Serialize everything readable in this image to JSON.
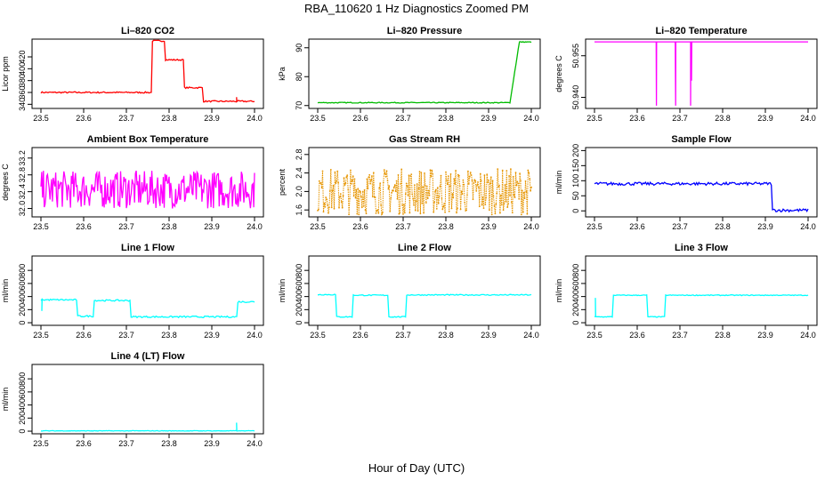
{
  "page": {
    "title": "RBA_110620  1 Hz Diagnostics Zoomed PM",
    "xlabel": "Hour of Day (UTC)"
  },
  "chart_data": [
    {
      "type": "line",
      "title": "Li–820 CO2",
      "ylabel": "Licor ppm",
      "color": "#ff0000",
      "xlim": [
        23.5,
        24.0
      ],
      "ylim": [
        333,
        450
      ],
      "yticks": [
        340,
        360,
        380,
        400,
        420
      ],
      "xticks": [
        "23.5",
        "23.6",
        "23.7",
        "23.8",
        "23.9",
        "24.0"
      ],
      "segments": [
        [
          23.5,
          23.76,
          360
        ],
        [
          23.76,
          23.79,
          447
        ],
        [
          23.79,
          23.835,
          415
        ],
        [
          23.835,
          23.88,
          368
        ],
        [
          23.88,
          24.0,
          345
        ]
      ],
      "noise": 1.2,
      "spikes": [
        [
          23.958,
          352
        ]
      ]
    },
    {
      "type": "line",
      "title": "Li–820 Pressure",
      "ylabel": "kPa",
      "color": "#00bb00",
      "xlim": [
        23.5,
        24.0
      ],
      "ylim": [
        69,
        93
      ],
      "yticks": [
        70,
        80,
        90
      ],
      "xticks": [
        "23.5",
        "23.6",
        "23.7",
        "23.8",
        "23.9",
        "24.0"
      ],
      "segments": [
        [
          23.5,
          23.95,
          71
        ],
        [
          23.95,
          23.97,
          80
        ],
        [
          23.97,
          24.0,
          92
        ]
      ],
      "noise": 0.15,
      "ramp": [
        23.95,
        23.972,
        71,
        92
      ]
    },
    {
      "type": "line",
      "title": "Li–820 Temperature",
      "ylabel": "degrees C",
      "color": "#ff00ff",
      "xlim": [
        23.5,
        24.0
      ],
      "ylim": [
        50.936,
        50.961
      ],
      "yticks": [
        50.94,
        50.955
      ],
      "ytick_labels": [
        "50.940",
        "50.955"
      ],
      "xticks": [
        "23.5",
        "23.6",
        "23.7",
        "23.8",
        "23.9",
        "24.0"
      ],
      "segments": [
        [
          23.5,
          24.0,
          50.96
        ]
      ],
      "noise": 0,
      "dips": [
        [
          23.645,
          50.937
        ],
        [
          23.69,
          50.937
        ],
        [
          23.725,
          50.937
        ],
        [
          23.727,
          50.946
        ]
      ]
    },
    {
      "type": "line",
      "title": "Ambient Box Temperature",
      "ylabel": "degrees C",
      "color": "#ff00ff",
      "xlim": [
        23.5,
        24.0
      ],
      "ylim": [
        31.8,
        33.45
      ],
      "yticks": [
        32.0,
        32.4,
        32.8,
        33.2
      ],
      "ytick_labels": [
        "32.0",
        "32.4",
        "32.8",
        "33.2"
      ],
      "xticks": [
        "23.5",
        "23.6",
        "23.7",
        "23.8",
        "23.9",
        "24.0"
      ],
      "segments": [
        [
          23.5,
          24.0,
          32.45
        ]
      ],
      "noise": 0.45,
      "dense": true
    },
    {
      "type": "scatter",
      "title": "Gas Stream RH",
      "ylabel": "percent",
      "color": "#e69500",
      "xlim": [
        23.5,
        24.0
      ],
      "ylim": [
        1.45,
        2.95
      ],
      "yticks": [
        1.6,
        2.0,
        2.4,
        2.8
      ],
      "ytick_labels": [
        "1.6",
        "2.0",
        "2.4",
        "2.8"
      ],
      "xticks": [
        "23.5",
        "23.6",
        "23.7",
        "23.8",
        "23.9",
        "24.0"
      ],
      "segments": [
        [
          23.5,
          24.0,
          2.0
        ]
      ],
      "noise": 0.5,
      "dense": true
    },
    {
      "type": "line",
      "title": "Sample Flow",
      "ylabel": "ml/min",
      "color": "#0000ff",
      "xlim": [
        23.5,
        24.0
      ],
      "ylim": [
        -20,
        210
      ],
      "yticks": [
        0,
        50,
        100,
        150,
        200
      ],
      "xticks": [
        "23.5",
        "23.6",
        "23.7",
        "23.8",
        "23.9",
        "24.0"
      ],
      "segments": [
        [
          23.5,
          23.915,
          90
        ],
        [
          23.915,
          24.0,
          2
        ]
      ],
      "noise": 5
    },
    {
      "type": "line",
      "title": "Line 1 Flow",
      "ylabel": "ml/min",
      "color": "#00ffff",
      "xlim": [
        23.5,
        24.0
      ],
      "ylim": [
        -40,
        1020
      ],
      "yticks": [
        0,
        200,
        400,
        600,
        800
      ],
      "xticks": [
        "23.5",
        "23.6",
        "23.7",
        "23.8",
        "23.9",
        "24.0"
      ],
      "segments": [
        [
          23.5,
          23.585,
          350
        ],
        [
          23.585,
          23.625,
          100
        ],
        [
          23.625,
          23.71,
          340
        ],
        [
          23.71,
          23.96,
          90
        ],
        [
          23.96,
          24.0,
          320
        ]
      ],
      "noise": 12,
      "spikes": [
        [
          23.502,
          180
        ]
      ]
    },
    {
      "type": "line",
      "title": "Line 2 Flow",
      "ylabel": "ml/min",
      "color": "#00ffff",
      "xlim": [
        23.5,
        24.0
      ],
      "ylim": [
        -40,
        1020
      ],
      "yticks": [
        0,
        200,
        400,
        600,
        800
      ],
      "xticks": [
        "23.5",
        "23.6",
        "23.7",
        "23.8",
        "23.9",
        "24.0"
      ],
      "segments": [
        [
          23.5,
          23.542,
          430
        ],
        [
          23.542,
          23.582,
          90
        ],
        [
          23.582,
          23.665,
          420
        ],
        [
          23.665,
          23.708,
          90
        ],
        [
          23.708,
          24.0,
          425
        ]
      ],
      "noise": 8
    },
    {
      "type": "line",
      "title": "Line 3 Flow",
      "ylabel": "ml/min",
      "color": "#00ffff",
      "xlim": [
        23.5,
        24.0
      ],
      "ylim": [
        -40,
        1020
      ],
      "yticks": [
        0,
        200,
        400,
        600,
        800
      ],
      "xticks": [
        "23.5",
        "23.6",
        "23.7",
        "23.8",
        "23.9",
        "24.0"
      ],
      "segments": [
        [
          23.5,
          23.542,
          90
        ],
        [
          23.542,
          23.625,
          420
        ],
        [
          23.625,
          23.665,
          90
        ],
        [
          23.665,
          24.0,
          420
        ]
      ],
      "noise": 6,
      "spikes": [
        [
          23.502,
          380
        ]
      ]
    },
    {
      "type": "line",
      "title": "Line 4 (LT) Flow",
      "ylabel": "ml/min",
      "color": "#00ffff",
      "xlim": [
        23.5,
        24.0
      ],
      "ylim": [
        -40,
        1020
      ],
      "yticks": [
        0,
        200,
        400,
        600,
        800
      ],
      "xticks": [
        "23.5",
        "23.6",
        "23.7",
        "23.8",
        "23.9",
        "24.0"
      ],
      "segments": [
        [
          23.5,
          24.0,
          5
        ]
      ],
      "noise": 4,
      "spikes": [
        [
          23.958,
          130
        ]
      ]
    }
  ]
}
